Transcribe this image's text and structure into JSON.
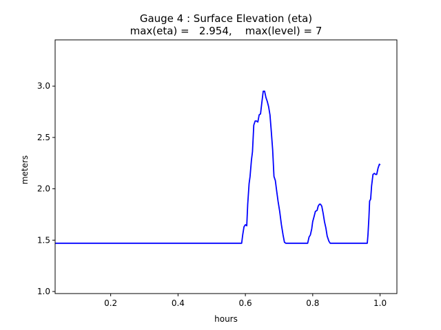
{
  "chart_data": {
    "type": "line",
    "title_line1": "Gauge 4 : Surface Elevation (eta)",
    "title_line2": "max(eta) =   2.954,    max(level) = 7",
    "xlabel": "hours",
    "ylabel": "meters",
    "xlim": [
      0.035,
      1.05
    ],
    "ylim": [
      0.98,
      3.45
    ],
    "xticks": [
      0.2,
      0.4,
      0.6,
      0.8,
      1.0
    ],
    "xtick_labels": [
      "0.2",
      "0.4",
      "0.6",
      "0.8",
      "1.0"
    ],
    "yticks": [
      1.0,
      1.5,
      2.0,
      2.5,
      3.0
    ],
    "ytick_labels": [
      "1.0",
      "1.5",
      "2.0",
      "2.5",
      "3.0"
    ],
    "grid": false,
    "series": [
      {
        "color": "#0000ff",
        "x": [
          0.035,
          0.589,
          0.592,
          0.596,
          0.6,
          0.604,
          0.607,
          0.611,
          0.614,
          0.618,
          0.621,
          0.625,
          0.629,
          0.633,
          0.637,
          0.641,
          0.645,
          0.649,
          0.653,
          0.657,
          0.661,
          0.665,
          0.669,
          0.673,
          0.677,
          0.681,
          0.685,
          0.689,
          0.693,
          0.697,
          0.702,
          0.707,
          0.712,
          0.716,
          0.72,
          0.724,
          0.728,
          0.785,
          0.789,
          0.793,
          0.797,
          0.8,
          0.804,
          0.808,
          0.813,
          0.816,
          0.82,
          0.823,
          0.827,
          0.831,
          0.835,
          0.839,
          0.843,
          0.848,
          0.852,
          0.857,
          0.861,
          0.962,
          0.964,
          0.967,
          0.969,
          0.972,
          0.975,
          0.979,
          0.983,
          0.987,
          0.99,
          0.994,
          0.998,
          1.0
        ],
        "y": [
          1.47,
          1.47,
          1.55,
          1.63,
          1.65,
          1.64,
          1.85,
          2.05,
          2.12,
          2.28,
          2.36,
          2.62,
          2.66,
          2.66,
          2.65,
          2.72,
          2.73,
          2.84,
          2.95,
          2.95,
          2.89,
          2.85,
          2.8,
          2.72,
          2.56,
          2.38,
          2.12,
          2.08,
          1.98,
          1.88,
          1.78,
          1.65,
          1.55,
          1.48,
          1.47,
          1.47,
          1.47,
          1.47,
          1.53,
          1.55,
          1.61,
          1.68,
          1.73,
          1.78,
          1.79,
          1.83,
          1.85,
          1.85,
          1.83,
          1.76,
          1.68,
          1.62,
          1.54,
          1.49,
          1.47,
          1.47,
          1.47,
          1.47,
          1.55,
          1.72,
          1.88,
          1.9,
          2.03,
          2.14,
          2.15,
          2.14,
          2.14,
          2.2,
          2.24,
          2.23
        ]
      }
    ]
  }
}
